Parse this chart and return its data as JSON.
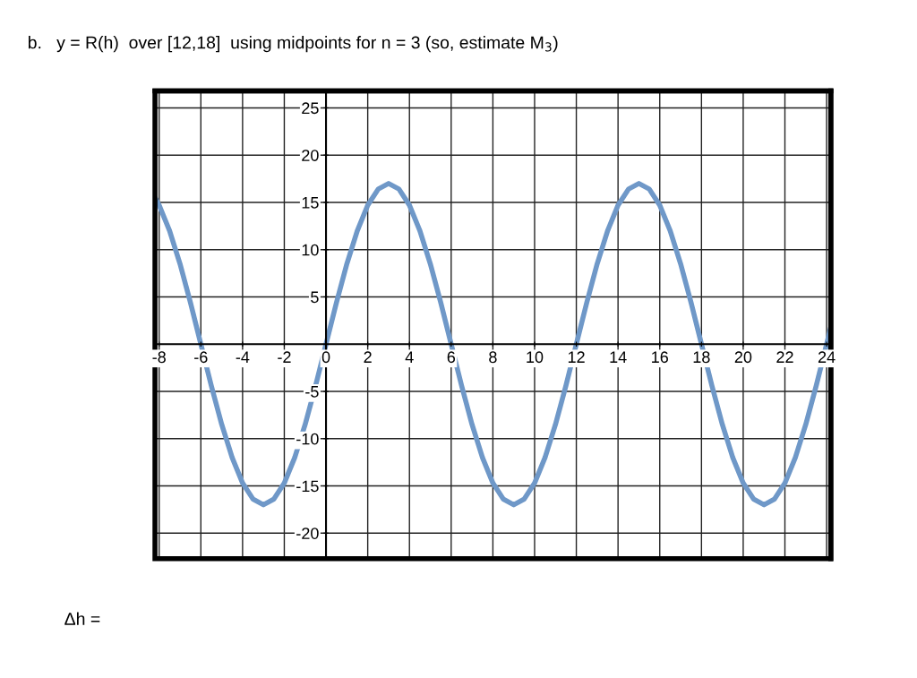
{
  "chart_data": {
    "type": "line",
    "title": "b.   y = R(h)  over [12,18]  using midpoints for n = 3 (so, estimate M$_{3}$)",
    "annotations": [
      "Δh ="
    ],
    "x": [
      -8.2,
      -8,
      -7.5,
      -7,
      -6.5,
      -6,
      -5.5,
      -5,
      -4.5,
      -4,
      -3.5,
      -3,
      -2.5,
      -2,
      -1.5,
      -1,
      -0.5,
      0,
      0.5,
      1,
      1.5,
      2,
      2.5,
      3,
      3.5,
      4,
      4.5,
      5,
      5.5,
      6,
      6.5,
      7,
      7.5,
      8,
      8.5,
      9,
      9.5,
      10,
      10.5,
      11,
      11.5,
      12,
      12.5,
      13,
      13.5,
      14,
      14.5,
      15,
      15.5,
      16,
      16.5,
      17,
      17.5,
      18,
      18.5,
      19,
      19.5,
      20,
      20.5,
      21,
      21.5,
      22,
      22.5,
      23,
      23.5,
      24,
      24.2
    ],
    "series": [
      {
        "color": "#6f98c8",
        "values": [
          15.5,
          14.7,
          12.0,
          8.5,
          4.4,
          0,
          -4.4,
          -8.5,
          -12.0,
          -14.7,
          -16.4,
          -17,
          -16.4,
          -14.7,
          -12.0,
          -8.5,
          -4.4,
          0,
          4.4,
          8.5,
          12.0,
          14.7,
          16.4,
          17,
          16.4,
          14.7,
          12.0,
          8.5,
          4.4,
          0,
          -4.4,
          -8.5,
          -12.0,
          -14.7,
          -16.4,
          -17,
          -16.4,
          -14.7,
          -12.0,
          -8.5,
          -4.4,
          0,
          4.4,
          8.5,
          12.0,
          14.7,
          16.4,
          17,
          16.4,
          14.7,
          12.0,
          8.5,
          4.4,
          0,
          -4.4,
          -8.5,
          -12.0,
          -14.7,
          -16.4,
          -17,
          -16.4,
          -14.7,
          -12.0,
          -8.5,
          -4.4,
          0,
          1.8
        ]
      }
    ],
    "xlim": [
      -8.2,
      24.2
    ],
    "ylim": [
      -22.7,
      26.8
    ],
    "xticks": [
      -8,
      -6,
      -4,
      -2,
      0,
      2,
      4,
      6,
      8,
      10,
      12,
      14,
      16,
      18,
      20,
      22,
      24
    ],
    "yticks": [
      -20,
      -15,
      -10,
      -5,
      5,
      10,
      15,
      20,
      25
    ],
    "grid": true
  }
}
